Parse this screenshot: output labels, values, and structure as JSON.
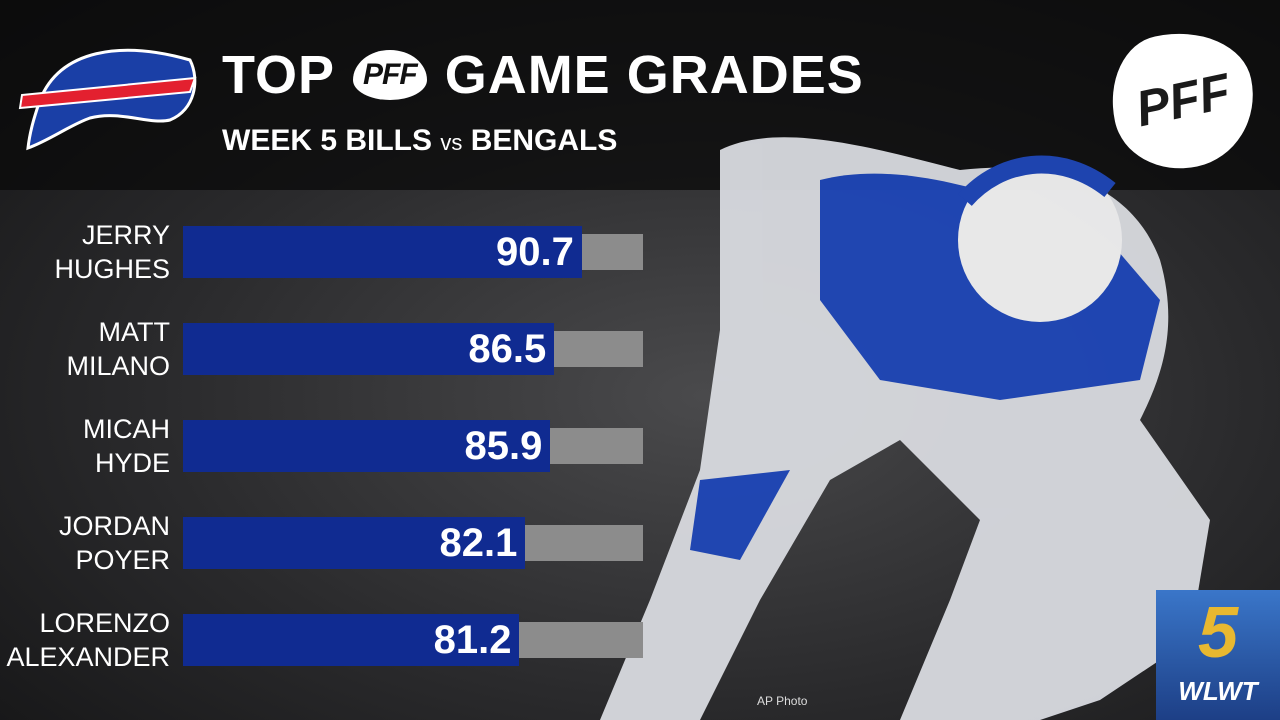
{
  "header": {
    "title_left": "TOP",
    "title_logo": "PFF",
    "title_right": "GAME GRADES",
    "subtitle": [
      "WEEK 5 BILLS",
      "vs",
      "BENGALS"
    ]
  },
  "chart_data": {
    "type": "bar",
    "orientation": "horizontal",
    "categories": [
      "JERRY HUGHES",
      "MATT MILANO",
      "MICAH HYDE",
      "JORDAN POYER",
      "LORENZO ALEXANDER"
    ],
    "values": [
      90.7,
      86.5,
      85.9,
      82.1,
      81.2
    ],
    "color": "#102b91",
    "track_color": "#8c8c8c",
    "xlim": [
      30,
      100
    ]
  },
  "brand_logo": "PFF",
  "credit": "AP Photo",
  "station": {
    "number": "5",
    "name": "WLWT"
  }
}
